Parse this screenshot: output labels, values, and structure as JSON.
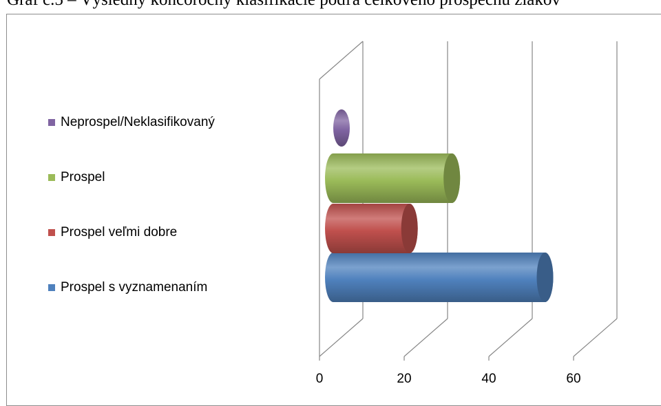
{
  "caption": "Graf č.5 – Výsledný koncoročný klasifikácie podľa celkového prospechu žiakov",
  "chart_data": {
    "type": "bar",
    "orientation": "horizontal",
    "style": "3d-cylinder",
    "categories": [
      "Prospel s vyznamenaním",
      "Prospel veľmi dobre",
      "Prospel",
      "Neprospel/Neklasifikovaný"
    ],
    "values": [
      50,
      18,
      28,
      2
    ],
    "colors": [
      "#4f81bd",
      "#c0504d",
      "#9bbb59",
      "#8064a2"
    ],
    "xlim": [
      0,
      60
    ],
    "xticks": [
      "0",
      "20",
      "40",
      "60"
    ],
    "grid": true,
    "legend_position": "left",
    "legend": [
      {
        "label": "Neprospel/Neklasifikovaný",
        "color": "#8064a2"
      },
      {
        "label": "Prospel",
        "color": "#9bbb59"
      },
      {
        "label": "Prospel veľmi dobre",
        "color": "#c0504d"
      },
      {
        "label": "Prospel s vyznamenaním",
        "color": "#4f81bd"
      }
    ]
  }
}
